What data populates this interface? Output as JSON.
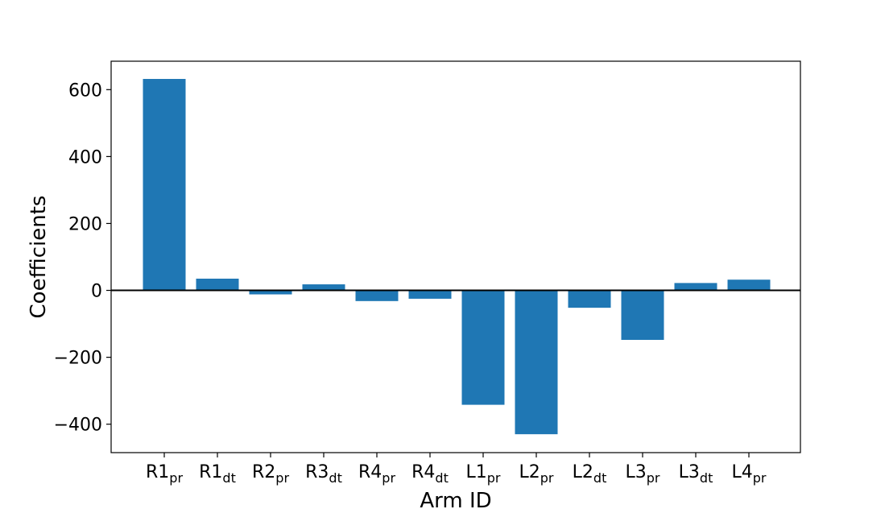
{
  "chart_data": {
    "type": "bar",
    "categories": [
      {
        "main": "R1",
        "sub": "pr"
      },
      {
        "main": "R1",
        "sub": "dt"
      },
      {
        "main": "R2",
        "sub": "pr"
      },
      {
        "main": "R3",
        "sub": "dt"
      },
      {
        "main": "R4",
        "sub": "pr"
      },
      {
        "main": "R4",
        "sub": "dt"
      },
      {
        "main": "L1",
        "sub": "pr"
      },
      {
        "main": "L2",
        "sub": "pr"
      },
      {
        "main": "L2",
        "sub": "dt"
      },
      {
        "main": "L3",
        "sub": "pr"
      },
      {
        "main": "L3",
        "sub": "dt"
      },
      {
        "main": "L4",
        "sub": "pr"
      }
    ],
    "values": [
      632,
      35,
      -12,
      18,
      -32,
      -25,
      -342,
      -430,
      -52,
      -148,
      22,
      32
    ],
    "xlabel": "Arm ID",
    "ylabel": "Coefficients",
    "ylim": [
      -485,
      685
    ],
    "yticks": [
      600,
      400,
      200,
      0,
      -200,
      -400
    ],
    "ytick_labels": [
      "600",
      "400",
      "200",
      "0",
      "−200",
      "−400"
    ],
    "bar_color": "#1f77b4",
    "zero_line": true,
    "grid": false
  }
}
